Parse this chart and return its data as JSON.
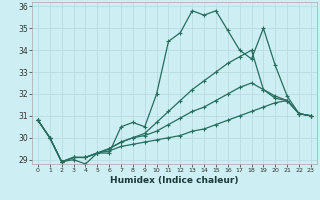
{
  "xlabel": "Humidex (Indice chaleur)",
  "xlim": [
    -0.5,
    23.5
  ],
  "ylim": [
    28.8,
    36.2
  ],
  "yticks": [
    29,
    30,
    31,
    32,
    33,
    34,
    35,
    36
  ],
  "xticks": [
    0,
    1,
    2,
    3,
    4,
    5,
    6,
    7,
    8,
    9,
    10,
    11,
    12,
    13,
    14,
    15,
    16,
    17,
    18,
    19,
    20,
    21,
    22,
    23
  ],
  "xtick_labels": [
    "0",
    "1",
    "2",
    "3",
    "4",
    "5",
    "6",
    "7",
    "8",
    "9",
    "10",
    "11",
    "12",
    "13",
    "14",
    "15",
    "16",
    "17",
    "18",
    "19",
    "20",
    "21",
    "22",
    "23"
  ],
  "bg_color": "#cdeef2",
  "grid_color": "#b8dde2",
  "line_color": "#276e5e",
  "lines": [
    [
      30.8,
      30.0,
      28.9,
      29.0,
      28.8,
      29.3,
      29.3,
      30.5,
      30.7,
      30.5,
      32.0,
      34.4,
      34.8,
      35.8,
      35.6,
      35.8,
      34.9,
      34.0,
      33.6,
      35.0,
      33.3,
      31.9,
      31.1,
      31.0
    ],
    [
      30.8,
      30.0,
      28.9,
      29.1,
      29.1,
      29.3,
      29.5,
      29.8,
      30.0,
      30.2,
      30.7,
      31.2,
      31.7,
      32.2,
      32.6,
      33.0,
      33.4,
      33.7,
      34.0,
      32.2,
      31.8,
      31.7,
      31.1,
      31.0
    ],
    [
      30.8,
      30.0,
      28.9,
      29.1,
      29.1,
      29.3,
      29.5,
      29.8,
      30.0,
      30.1,
      30.3,
      30.6,
      30.9,
      31.2,
      31.4,
      31.7,
      32.0,
      32.3,
      32.5,
      32.2,
      31.9,
      31.7,
      31.1,
      31.0
    ],
    [
      30.8,
      30.0,
      28.9,
      29.1,
      29.1,
      29.3,
      29.4,
      29.6,
      29.7,
      29.8,
      29.9,
      30.0,
      30.1,
      30.3,
      30.4,
      30.6,
      30.8,
      31.0,
      31.2,
      31.4,
      31.6,
      31.7,
      31.1,
      31.0
    ]
  ],
  "markersize": 2.5,
  "linewidth": 0.9
}
